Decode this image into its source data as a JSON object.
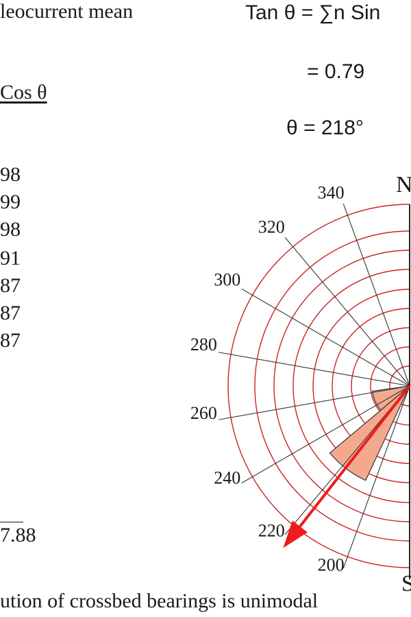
{
  "title_fragment": "leocurrent mean",
  "column_header": "Cos θ",
  "equations": {
    "tan": "Tan θ = ∑n Sin",
    "ratio": "= 0.79",
    "theta": "θ = 218°"
  },
  "cos_values": [
    "98",
    "99",
    "98",
    "91",
    "87",
    "87",
    "87"
  ],
  "cos_total": "7.88",
  "caption": "ution of crossbed bearings is unimodal",
  "rose_diagram": {
    "north_label": "N",
    "south_label": "S",
    "bearing_labels": [
      "340",
      "320",
      "300",
      "280",
      "260",
      "240",
      "220",
      "200"
    ],
    "mean_bearing_deg": 218,
    "ring_color": "#cc2222",
    "spoke_color": "#333333",
    "petal_color": "#f4a98f",
    "arrow_color": "#ee1c1c"
  }
}
